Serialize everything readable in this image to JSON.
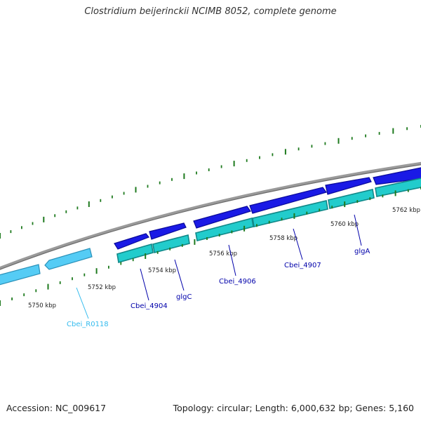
{
  "title": "Clostridium beijerinckii NCIMB 8052, complete genome",
  "footer": {
    "accession": "Accession: NC_009617",
    "topology": "Topology: circular; Length: 6,000,632 bp; Genes: 5,160"
  },
  "colors": {
    "backbone": "#8a8a8a",
    "cds_forward": "#1a1ae6",
    "cds_forward_dark": "#0a0a9a",
    "cds_reverse": "#22cccc",
    "cds_reverse_dark": "#118888",
    "rna": "#55ccf5",
    "rna_dark": "#2a90b8",
    "tick": "#1e7a1e",
    "label_cds": "#0000aa",
    "label_rna": "#33bbee"
  },
  "kbp_labels": [
    "5750 kbp",
    "5752 kbp",
    "5754 kbp",
    "5756 kbp",
    "5758 kbp",
    "5760 kbp",
    "5762 kbp"
  ],
  "gene_labels": {
    "rna": "Cbei_R0118",
    "cbei_4904": "Cbei_4904",
    "glgc": "glgC",
    "cbei_4906": "Cbei_4906",
    "cbei_4907": "Cbei_4907",
    "glga": "glgA"
  }
}
